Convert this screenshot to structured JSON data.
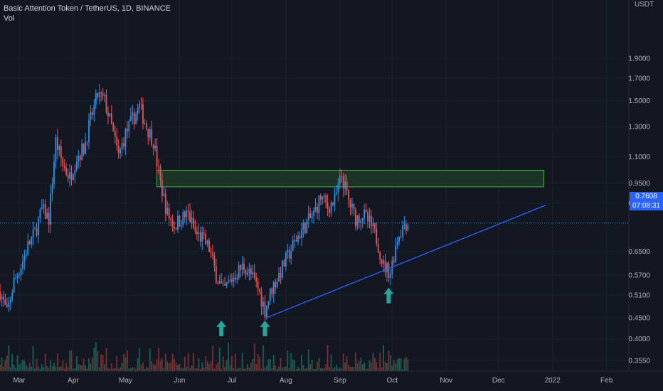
{
  "header": {
    "title": "Basic Attention Token / TetherUS, 1D, BINANCE",
    "indicator": "Vol"
  },
  "price_axis": {
    "unit": "USDT"
  },
  "last_price": {
    "value": "0.7608",
    "countdown": "07:08:31"
  },
  "colors": {
    "background": "#131722",
    "up": "#2196f3",
    "down": "#ef5350",
    "vol_up": "#1b5e54",
    "vol_down": "#7b2f2f",
    "zone_fill": "#1e3a26",
    "zone_border": "#4caf50",
    "trendline": "#2962ff",
    "arrow": "#26a69a",
    "price_tag": "#2962ff"
  },
  "chart_data": {
    "type": "candlestick",
    "title": "Basic Attention Token / TetherUS, 1D, BINANCE",
    "scale": "log",
    "y_ticks": [
      0.355,
      0.4,
      0.45,
      0.51,
      0.57,
      0.65,
      0.7608,
      0.85,
      0.95,
      1.1,
      1.3,
      1.5,
      1.7,
      1.9
    ],
    "y_tick_labels": [
      "0.3550",
      "0.4000",
      "0.4500",
      "0.5100",
      "0.5700",
      "0.6500",
      "0.7608",
      "0.8500",
      "0.9500",
      "1.1000",
      "1.3000",
      "1.5000",
      "1.7000",
      "1.9000"
    ],
    "x_labels": [
      "Mar",
      "Apr",
      "May",
      "Jun",
      "Jul",
      "Aug",
      "Sep",
      "Oct",
      "Nov",
      "Dec",
      "2022",
      "Feb"
    ],
    "x_label_dates": [
      "2021-03-01",
      "2021-04-01",
      "2021-05-01",
      "2021-06-01",
      "2021-07-01",
      "2021-08-01",
      "2021-09-01",
      "2021-10-01",
      "2021-11-01",
      "2021-12-01",
      "2022-01-01",
      "2022-02-01"
    ],
    "series_close": [
      [
        "2021-02-18",
        0.52
      ],
      [
        "2021-02-22",
        0.46
      ],
      [
        "2021-02-26",
        0.55
      ],
      [
        "2021-03-02",
        0.6
      ],
      [
        "2021-03-06",
        0.67
      ],
      [
        "2021-03-10",
        0.72
      ],
      [
        "2021-03-14",
        0.82
      ],
      [
        "2021-03-18",
        0.78
      ],
      [
        "2021-03-22",
        1.2
      ],
      [
        "2021-03-26",
        1.05
      ],
      [
        "2021-03-30",
        0.98
      ],
      [
        "2021-04-03",
        1.1
      ],
      [
        "2021-04-07",
        1.15
      ],
      [
        "2021-04-11",
        1.35
      ],
      [
        "2021-04-15",
        1.55
      ],
      [
        "2021-04-19",
        1.5
      ],
      [
        "2021-04-23",
        1.3
      ],
      [
        "2021-04-27",
        1.1
      ],
      [
        "2021-05-01",
        1.25
      ],
      [
        "2021-05-05",
        1.35
      ],
      [
        "2021-05-09",
        1.45
      ],
      [
        "2021-05-13",
        1.3
      ],
      [
        "2021-05-17",
        1.2
      ],
      [
        "2021-05-21",
        0.95
      ],
      [
        "2021-05-25",
        0.8
      ],
      [
        "2021-05-29",
        0.75
      ],
      [
        "2021-06-02",
        0.78
      ],
      [
        "2021-06-06",
        0.8
      ],
      [
        "2021-06-10",
        0.72
      ],
      [
        "2021-06-14",
        0.7
      ],
      [
        "2021-06-18",
        0.66
      ],
      [
        "2021-06-22",
        0.57
      ],
      [
        "2021-06-26",
        0.52
      ],
      [
        "2021-06-30",
        0.55
      ],
      [
        "2021-07-04",
        0.58
      ],
      [
        "2021-07-08",
        0.6
      ],
      [
        "2021-07-12",
        0.57
      ],
      [
        "2021-07-16",
        0.53
      ],
      [
        "2021-07-20",
        0.47
      ],
      [
        "2021-07-24",
        0.53
      ],
      [
        "2021-07-28",
        0.57
      ],
      [
        "2021-08-01",
        0.62
      ],
      [
        "2021-08-05",
        0.67
      ],
      [
        "2021-08-09",
        0.72
      ],
      [
        "2021-08-13",
        0.76
      ],
      [
        "2021-08-17",
        0.8
      ],
      [
        "2021-08-21",
        0.88
      ],
      [
        "2021-08-25",
        0.83
      ],
      [
        "2021-08-29",
        0.86
      ],
      [
        "2021-09-02",
        0.99
      ],
      [
        "2021-09-06",
        0.86
      ],
      [
        "2021-09-10",
        0.78
      ],
      [
        "2021-09-14",
        0.8
      ],
      [
        "2021-09-18",
        0.76
      ],
      [
        "2021-09-22",
        0.7
      ],
      [
        "2021-09-26",
        0.6
      ],
      [
        "2021-09-30",
        0.58
      ],
      [
        "2021-10-02",
        0.64
      ],
      [
        "2021-10-04",
        0.7
      ],
      [
        "2021-10-06",
        0.73
      ],
      [
        "2021-10-08",
        0.76
      ],
      [
        "2021-10-10",
        0.7608
      ]
    ],
    "resistance_zone": {
      "y_low": 0.93,
      "y_high": 1.02,
      "x_start": "2021-05-19",
      "x_end": "2021-12-27"
    },
    "trendline": {
      "points": [
        [
          "2021-07-21",
          0.45
        ],
        [
          "2021-12-28",
          0.84
        ]
      ]
    },
    "arrows": [
      {
        "date": "2021-06-25",
        "price": 0.45
      },
      {
        "date": "2021-07-20",
        "price": 0.45
      },
      {
        "date": "2021-09-29",
        "price": 0.54
      }
    ]
  }
}
